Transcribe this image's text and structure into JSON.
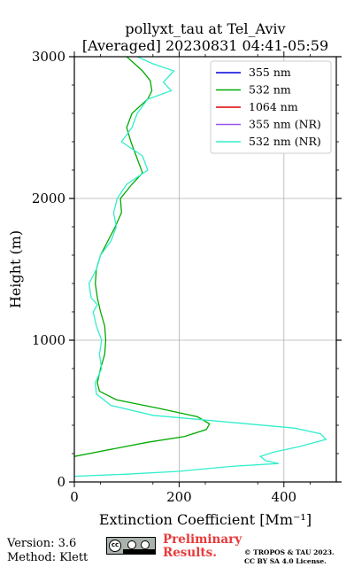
{
  "title_line1": "pollyxt_tau at Tel_Aviv",
  "title_line2": "[Averaged] 20230831 04:41-05:59",
  "footer": {
    "version": "Version: 3.6",
    "method": "Method: Klett",
    "preliminary_line1": "Preliminary",
    "preliminary_line2": "Results.",
    "license_line1": "© TROPOS & TAU 2023.",
    "license_line2": "CC BY SA 4.0 License.",
    "license_badge_icon": "cc-by-sa-icon"
  },
  "chart_data": {
    "type": "line",
    "xlabel": "Extinction Coefficient [Mm⁻¹]",
    "ylabel": "Height (m)",
    "xlim": [
      0,
      500
    ],
    "ylim": [
      0,
      3000
    ],
    "x_ticks": [
      "0",
      "200",
      "400"
    ],
    "y_ticks": [
      "0",
      "1000",
      "2000",
      "3000"
    ],
    "grid": true,
    "legend_position": "top-right",
    "series": [
      {
        "name": "355 nm",
        "color": "#0000dd",
        "points": []
      },
      {
        "name": "532 nm",
        "color": "#00aa00",
        "points": [
          [
            0,
            180
          ],
          [
            70,
            230
          ],
          [
            140,
            280
          ],
          [
            210,
            320
          ],
          [
            252,
            370
          ],
          [
            258,
            410
          ],
          [
            235,
            460
          ],
          [
            160,
            520
          ],
          [
            80,
            580
          ],
          [
            48,
            640
          ],
          [
            44,
            700
          ],
          [
            50,
            800
          ],
          [
            58,
            900
          ],
          [
            60,
            1000
          ],
          [
            58,
            1100
          ],
          [
            50,
            1200
          ],
          [
            44,
            1300
          ],
          [
            40,
            1400
          ],
          [
            42,
            1500
          ],
          [
            50,
            1600
          ],
          [
            64,
            1700
          ],
          [
            78,
            1800
          ],
          [
            90,
            1900
          ],
          [
            88,
            2000
          ],
          [
            110,
            2100
          ],
          [
            130,
            2180
          ],
          [
            118,
            2300
          ],
          [
            108,
            2400
          ],
          [
            100,
            2500
          ],
          [
            110,
            2600
          ],
          [
            140,
            2700
          ],
          [
            148,
            2760
          ],
          [
            145,
            2830
          ],
          [
            130,
            2900
          ],
          [
            112,
            2960
          ],
          [
            100,
            3000
          ]
        ]
      },
      {
        "name": "1064 nm",
        "color": "#dd0000",
        "points": []
      },
      {
        "name": "355 nm (NR)",
        "color": "#9955ee",
        "points": []
      },
      {
        "name": "532 nm (NR)",
        "color": "#33eecc",
        "points": [
          [
            0,
            40
          ],
          [
            100,
            55
          ],
          [
            200,
            75
          ],
          [
            300,
            110
          ],
          [
            390,
            130
          ],
          [
            365,
            150
          ],
          [
            355,
            180
          ],
          [
            380,
            210
          ],
          [
            430,
            250
          ],
          [
            480,
            300
          ],
          [
            470,
            340
          ],
          [
            420,
            380
          ],
          [
            300,
            420
          ],
          [
            150,
            470
          ],
          [
            70,
            540
          ],
          [
            42,
            620
          ],
          [
            40,
            700
          ],
          [
            52,
            800
          ],
          [
            48,
            900
          ],
          [
            52,
            1000
          ],
          [
            42,
            1100
          ],
          [
            36,
            1200
          ],
          [
            44,
            1250
          ],
          [
            32,
            1300
          ],
          [
            28,
            1400
          ],
          [
            42,
            1500
          ],
          [
            50,
            1600
          ],
          [
            70,
            1700
          ],
          [
            80,
            1800
          ],
          [
            75,
            1900
          ],
          [
            82,
            2000
          ],
          [
            100,
            2100
          ],
          [
            140,
            2200
          ],
          [
            130,
            2300
          ],
          [
            90,
            2400
          ],
          [
            110,
            2500
          ],
          [
            120,
            2600
          ],
          [
            140,
            2700
          ],
          [
            185,
            2760
          ],
          [
            170,
            2820
          ],
          [
            190,
            2900
          ],
          [
            150,
            2950
          ],
          [
            120,
            3000
          ]
        ]
      }
    ]
  }
}
